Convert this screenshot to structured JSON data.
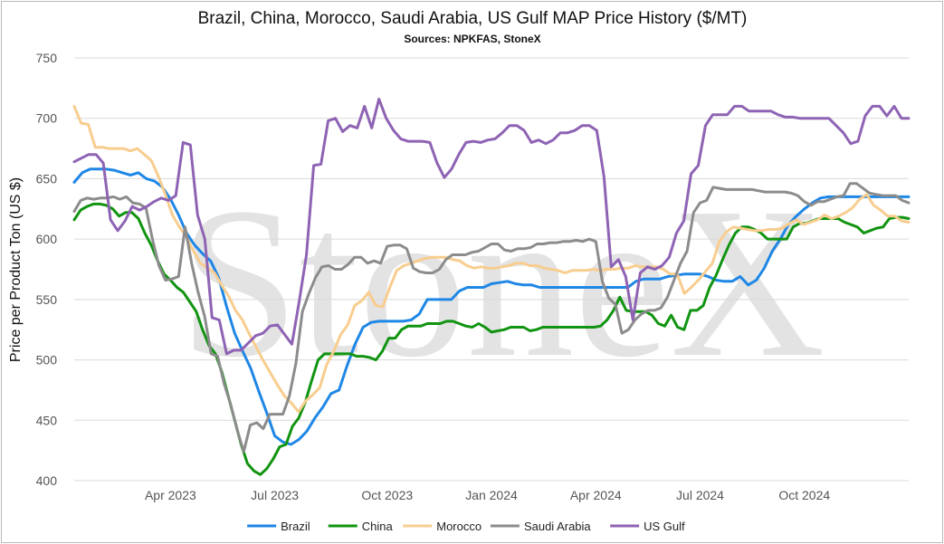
{
  "chart_data": {
    "type": "line",
    "title": "Brazil, China, Morocco, Saudi Arabia, US Gulf MAP Price History ($/MT)",
    "subtitle": "Sources: NPKFAS, StoneX",
    "ylabel": "Price per Product Ton (US $)",
    "xlabel": "",
    "ylim": [
      400,
      750
    ],
    "yticks": [
      400,
      450,
      500,
      550,
      600,
      650,
      700,
      750
    ],
    "xlim": [
      0,
      104
    ],
    "xticks": [
      {
        "t": 12,
        "label": "Apr 2023"
      },
      {
        "t": 25,
        "label": "Jul 2023"
      },
      {
        "t": 39,
        "label": "Oct 2023"
      },
      {
        "t": 52,
        "label": "Jan 2024"
      },
      {
        "t": 65,
        "label": "Apr 2024"
      },
      {
        "t": 78,
        "label": "Jul 2024"
      },
      {
        "t": 91,
        "label": "Oct 2024"
      }
    ],
    "grid": "horizontal",
    "legend_position": "bottom",
    "watermark": "StoneX",
    "series": [
      {
        "name": "Brazil",
        "color": "#1f87e5",
        "values": [
          647,
          655,
          658,
          658,
          658,
          657,
          655,
          653,
          655,
          650,
          648,
          643,
          633,
          620,
          605,
          595,
          588,
          582,
          568,
          544,
          522,
          507,
          493,
          474,
          456,
          437,
          432,
          430,
          434,
          441,
          452,
          461,
          472,
          475,
          495,
          513,
          527,
          531,
          532,
          532,
          532,
          532,
          533,
          538,
          550,
          550,
          550,
          550,
          557,
          560,
          560,
          560,
          563,
          564,
          565,
          563,
          562,
          562,
          560,
          560,
          560,
          560,
          560,
          560,
          560,
          560,
          560,
          560,
          560,
          560,
          565,
          567,
          567,
          567,
          569,
          570,
          571,
          571,
          571,
          569,
          566,
          565,
          565,
          569,
          562,
          566,
          576,
          590,
          600,
          612,
          619,
          625,
          630,
          634,
          635,
          635,
          635,
          635,
          635,
          635,
          635,
          635,
          635,
          635,
          635
        ]
      },
      {
        "name": "China",
        "color": "#119411",
        "values": [
          616,
          624,
          627,
          629,
          629,
          628,
          625,
          619,
          622,
          622,
          617,
          605,
          595,
          582,
          571,
          566,
          560,
          556,
          548,
          540,
          525,
          512,
          505,
          490,
          470,
          450,
          430,
          414,
          408,
          405,
          410,
          418,
          428,
          430,
          445,
          452,
          465,
          483,
          500,
          505,
          505,
          505,
          505,
          505,
          503,
          503,
          502,
          500,
          507,
          518,
          518,
          525,
          528,
          528,
          528,
          530,
          530,
          530,
          532,
          532,
          530,
          528,
          527,
          530,
          527,
          523,
          524,
          525,
          527,
          527,
          527,
          524,
          525,
          527,
          527,
          527,
          527,
          527,
          527,
          527,
          527,
          527,
          528,
          533,
          541,
          552,
          541,
          540,
          540,
          540,
          537,
          530,
          528,
          537,
          527,
          525,
          541,
          541,
          545,
          560,
          570,
          583,
          595,
          605,
          610,
          610,
          608,
          605,
          600,
          600,
          600,
          600,
          610,
          613,
          613,
          615,
          617,
          617,
          617,
          617,
          614,
          612,
          610,
          605,
          607,
          609,
          610,
          617,
          618,
          618,
          617
        ]
      },
      {
        "name": "Morocco",
        "color": "#f8cd8f",
        "values": [
          710,
          696,
          695,
          676,
          676,
          675,
          675,
          675,
          673,
          675,
          670,
          665,
          652,
          637,
          620,
          610,
          602,
          590,
          580,
          576,
          572,
          562,
          553,
          541,
          533,
          521,
          510,
          499,
          489,
          479,
          470,
          464,
          457,
          466,
          471,
          477,
          496,
          507,
          521,
          529,
          545,
          549,
          556,
          545,
          544,
          560,
          574,
          578,
          580,
          582,
          584,
          585,
          585,
          585,
          583,
          582,
          578,
          576,
          577,
          576,
          576,
          577,
          578,
          580,
          580,
          578,
          578,
          576,
          575,
          574,
          572,
          574,
          574,
          574,
          575,
          574,
          575,
          575,
          576,
          576,
          578,
          577,
          577,
          577,
          575,
          571,
          571,
          555,
          560,
          566,
          573,
          580,
          598,
          606,
          610,
          609,
          608,
          607,
          607,
          608,
          608,
          609,
          613,
          616,
          612,
          614,
          616,
          620,
          617,
          619,
          622,
          626,
          633,
          637,
          628,
          624,
          619,
          619,
          615,
          614
        ]
      },
      {
        "name": "Saudi Arabia",
        "color": "#8c8c8c",
        "values": [
          623,
          632,
          634,
          633,
          634,
          634,
          635,
          633,
          635,
          630,
          629,
          626,
          600,
          578,
          566,
          567,
          569,
          610,
          580,
          556,
          536,
          505,
          503,
          480,
          463,
          442,
          424,
          446,
          448,
          443,
          455,
          455,
          455,
          470,
          497,
          540,
          555,
          568,
          577,
          578,
          575,
          575,
          579,
          585,
          585,
          580,
          582,
          580,
          594,
          595,
          595,
          592,
          576,
          573,
          572,
          572,
          575,
          583,
          587,
          587,
          587,
          589,
          590,
          593,
          596,
          596,
          591,
          590,
          592,
          592,
          593,
          596,
          596,
          597,
          597,
          598,
          598,
          599,
          598,
          600,
          598,
          565,
          551,
          546,
          522,
          525,
          533,
          538,
          541,
          541,
          543,
          552,
          566,
          580,
          590,
          622,
          630,
          632,
          643,
          642,
          641,
          641,
          641,
          641,
          641,
          640,
          639,
          639,
          639,
          639,
          638,
          636,
          631,
          628,
          631,
          631,
          633,
          635,
          636,
          646,
          646,
          642,
          638,
          637,
          636,
          636,
          636,
          632,
          630
        ]
      },
      {
        "name": "US Gulf",
        "color": "#8e63b4",
        "values": [
          664,
          667,
          670,
          670,
          663,
          616,
          607,
          615,
          627,
          624,
          627,
          631,
          634,
          632,
          636,
          680,
          678,
          620,
          600,
          535,
          533,
          505,
          508,
          508,
          514,
          520,
          522,
          528,
          529,
          521,
          513,
          548,
          587,
          661,
          662,
          698,
          700,
          689,
          694,
          692,
          710,
          692,
          716,
          700,
          690,
          683,
          681,
          681,
          681,
          680,
          663,
          651,
          658,
          670,
          680,
          681,
          680,
          682,
          683,
          688,
          694,
          694,
          690,
          680,
          682,
          679,
          682,
          688,
          688,
          690,
          694,
          694,
          690,
          652,
          577,
          583,
          569,
          533,
          572,
          577,
          575,
          578,
          585,
          605,
          615,
          654,
          661,
          694,
          703,
          703,
          703,
          710,
          710,
          706,
          706,
          706,
          706,
          703,
          701,
          701,
          700,
          700,
          700,
          700,
          700,
          694,
          688,
          679,
          681,
          702,
          710,
          710,
          702,
          710,
          700,
          700
        ]
      }
    ]
  }
}
